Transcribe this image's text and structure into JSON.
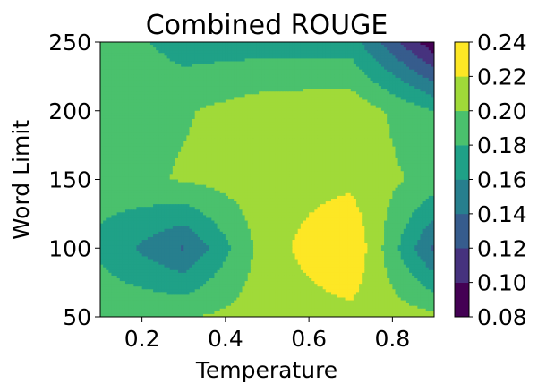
{
  "chart_data": {
    "type": "contour",
    "title": "Combined ROUGE",
    "xlabel": "Temperature",
    "ylabel": "Word Limit",
    "xlim": [
      0.1,
      0.9
    ],
    "ylim": [
      50,
      250
    ],
    "x": [
      0.1,
      0.3,
      0.5,
      0.7,
      0.9
    ],
    "y": [
      50,
      100,
      150,
      200,
      250
    ],
    "z": [
      [
        0.196,
        0.198,
        0.21,
        0.214,
        0.205
      ],
      [
        0.175,
        0.138,
        0.212,
        0.24,
        0.135
      ],
      [
        0.19,
        0.202,
        0.212,
        0.215,
        0.192
      ],
      [
        0.195,
        0.198,
        0.212,
        0.214,
        0.18
      ],
      [
        0.195,
        0.17,
        0.17,
        0.17,
        0.085
      ]
    ],
    "xticks": [
      0.2,
      0.4,
      0.6,
      0.8
    ],
    "xtick_labels": [
      "0.2",
      "0.4",
      "0.6",
      "0.8"
    ],
    "yticks": [
      50,
      100,
      150,
      200,
      250
    ],
    "ytick_labels": [
      "50",
      "100",
      "150",
      "200",
      "250"
    ],
    "levels": [
      0.08,
      0.1,
      0.12,
      0.14,
      0.16,
      0.18,
      0.2,
      0.22,
      0.24
    ],
    "colorbar": {
      "ticks": [
        "0.08",
        "0.10",
        "0.12",
        "0.14",
        "0.16",
        "0.18",
        "0.20",
        "0.22",
        "0.24"
      ],
      "colors": [
        "#440154",
        "#46327e",
        "#365c8d",
        "#277f8e",
        "#1fa187",
        "#4ac16d",
        "#a0da39",
        "#fde725"
      ]
    },
    "colormap": "viridis",
    "grid": false
  }
}
